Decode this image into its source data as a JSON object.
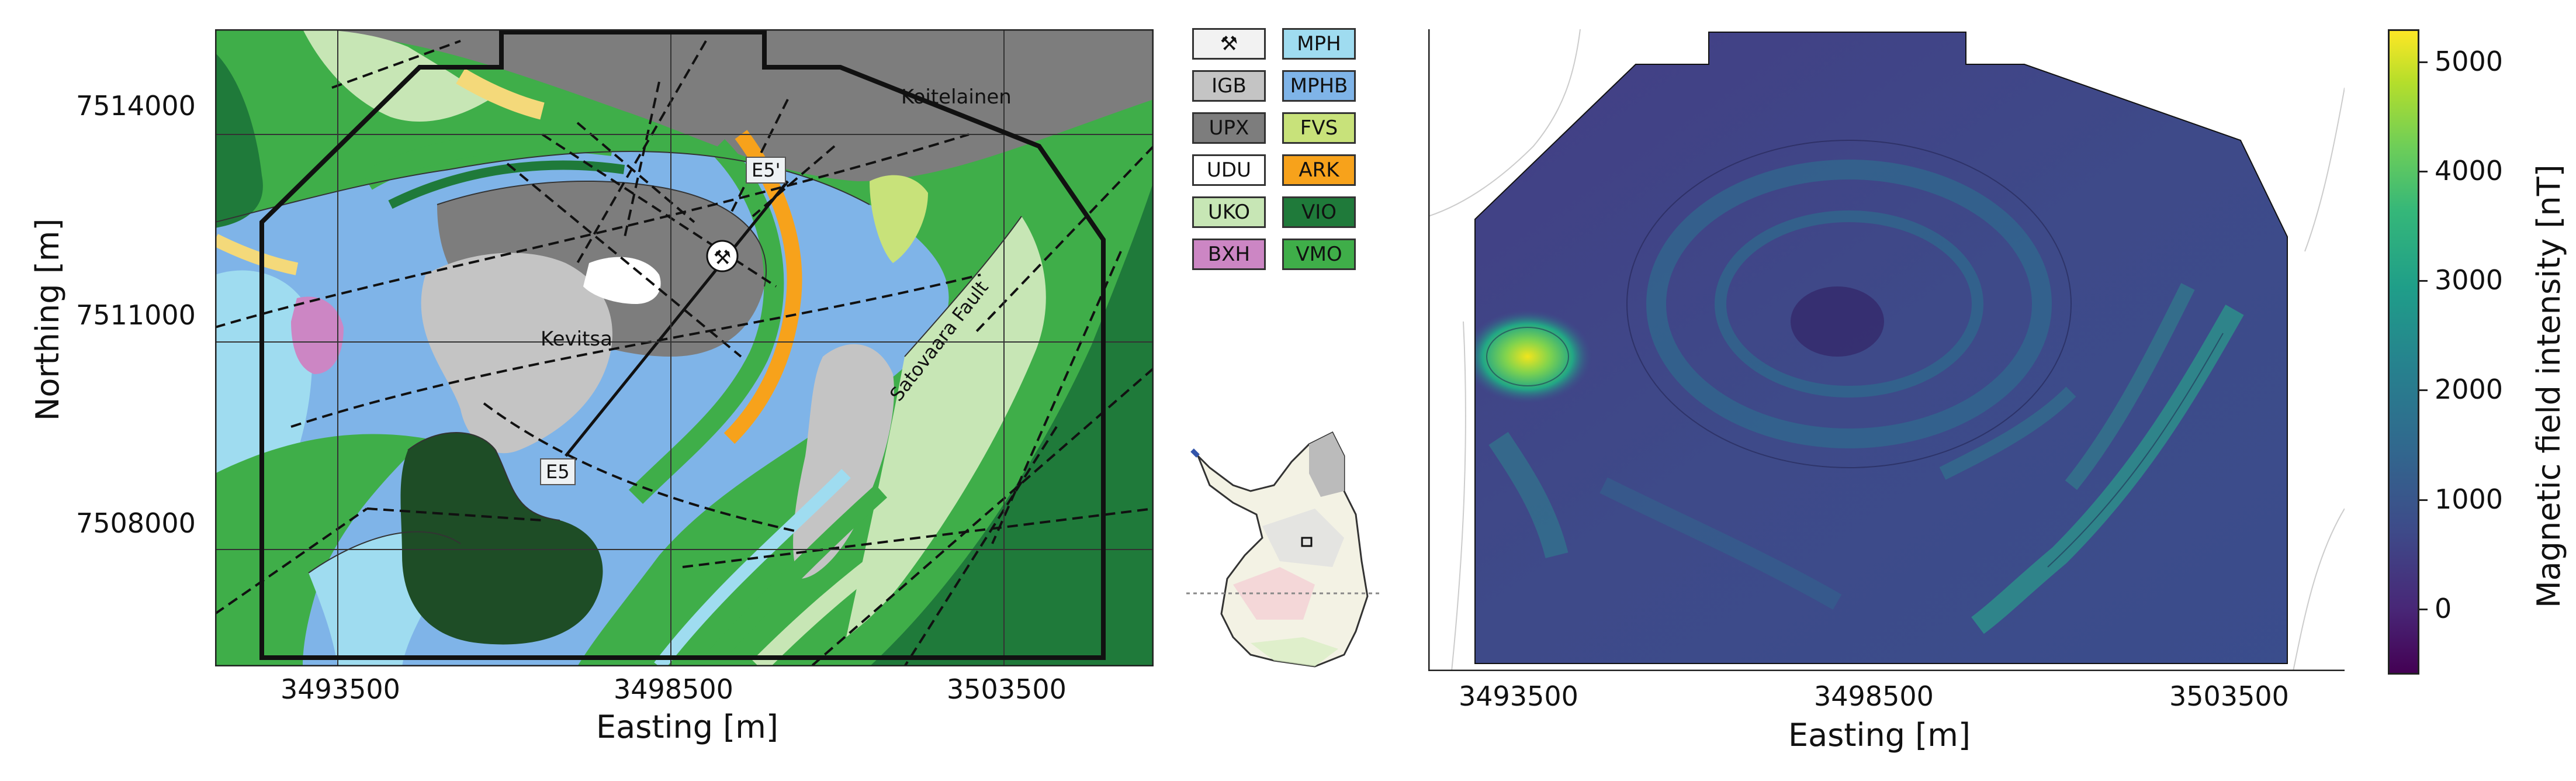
{
  "geology_map": {
    "ylabel": "Northing [m]",
    "xlabel": "Easting [m]",
    "y_ticks": [
      "7514000",
      "7511000",
      "7508000"
    ],
    "x_ticks": [
      "3493500",
      "3498500",
      "3503500"
    ],
    "labels": {
      "koitelainen": "Koitelainen",
      "kevitsa": "Kevitsa",
      "fault": "Satovaara Fault",
      "e5": "E5",
      "e5prime": "E5'"
    }
  },
  "legend": [
    {
      "code": "⚒",
      "color": "#f2f2f2",
      "icon": "mine-icon"
    },
    {
      "code": "MPH",
      "color": "#9fdcf0"
    },
    {
      "code": "IGB",
      "color": "#c4c4c4"
    },
    {
      "code": "MPHB",
      "color": "#7fb4e8"
    },
    {
      "code": "UPX",
      "color": "#7d7d7d"
    },
    {
      "code": "FVS",
      "color": "#c8e27a"
    },
    {
      "code": "UDU",
      "color": "#ffffff"
    },
    {
      "code": "ARK",
      "color": "#f7a21b"
    },
    {
      "code": "UKO",
      "color": "#c7e6b5"
    },
    {
      "code": "VIO",
      "color": "#1f7a3a"
    },
    {
      "code": "BXH",
      "color": "#cc86c4"
    },
    {
      "code": "VMO",
      "color": "#3fae49"
    }
  ],
  "magnetic_map": {
    "xlabel": "Easting [m]",
    "x_ticks": [
      "3493500",
      "3498500",
      "3503500"
    ],
    "colorbar_label": "Magnetic field intensity [nT]",
    "colorbar_ticks": [
      "5000",
      "4000",
      "3000",
      "2000",
      "1000",
      "0"
    ],
    "colorbar_values": [
      5000,
      4000,
      3000,
      2000,
      1000,
      0
    ],
    "colorbar_range": [
      -600,
      5300
    ]
  }
}
